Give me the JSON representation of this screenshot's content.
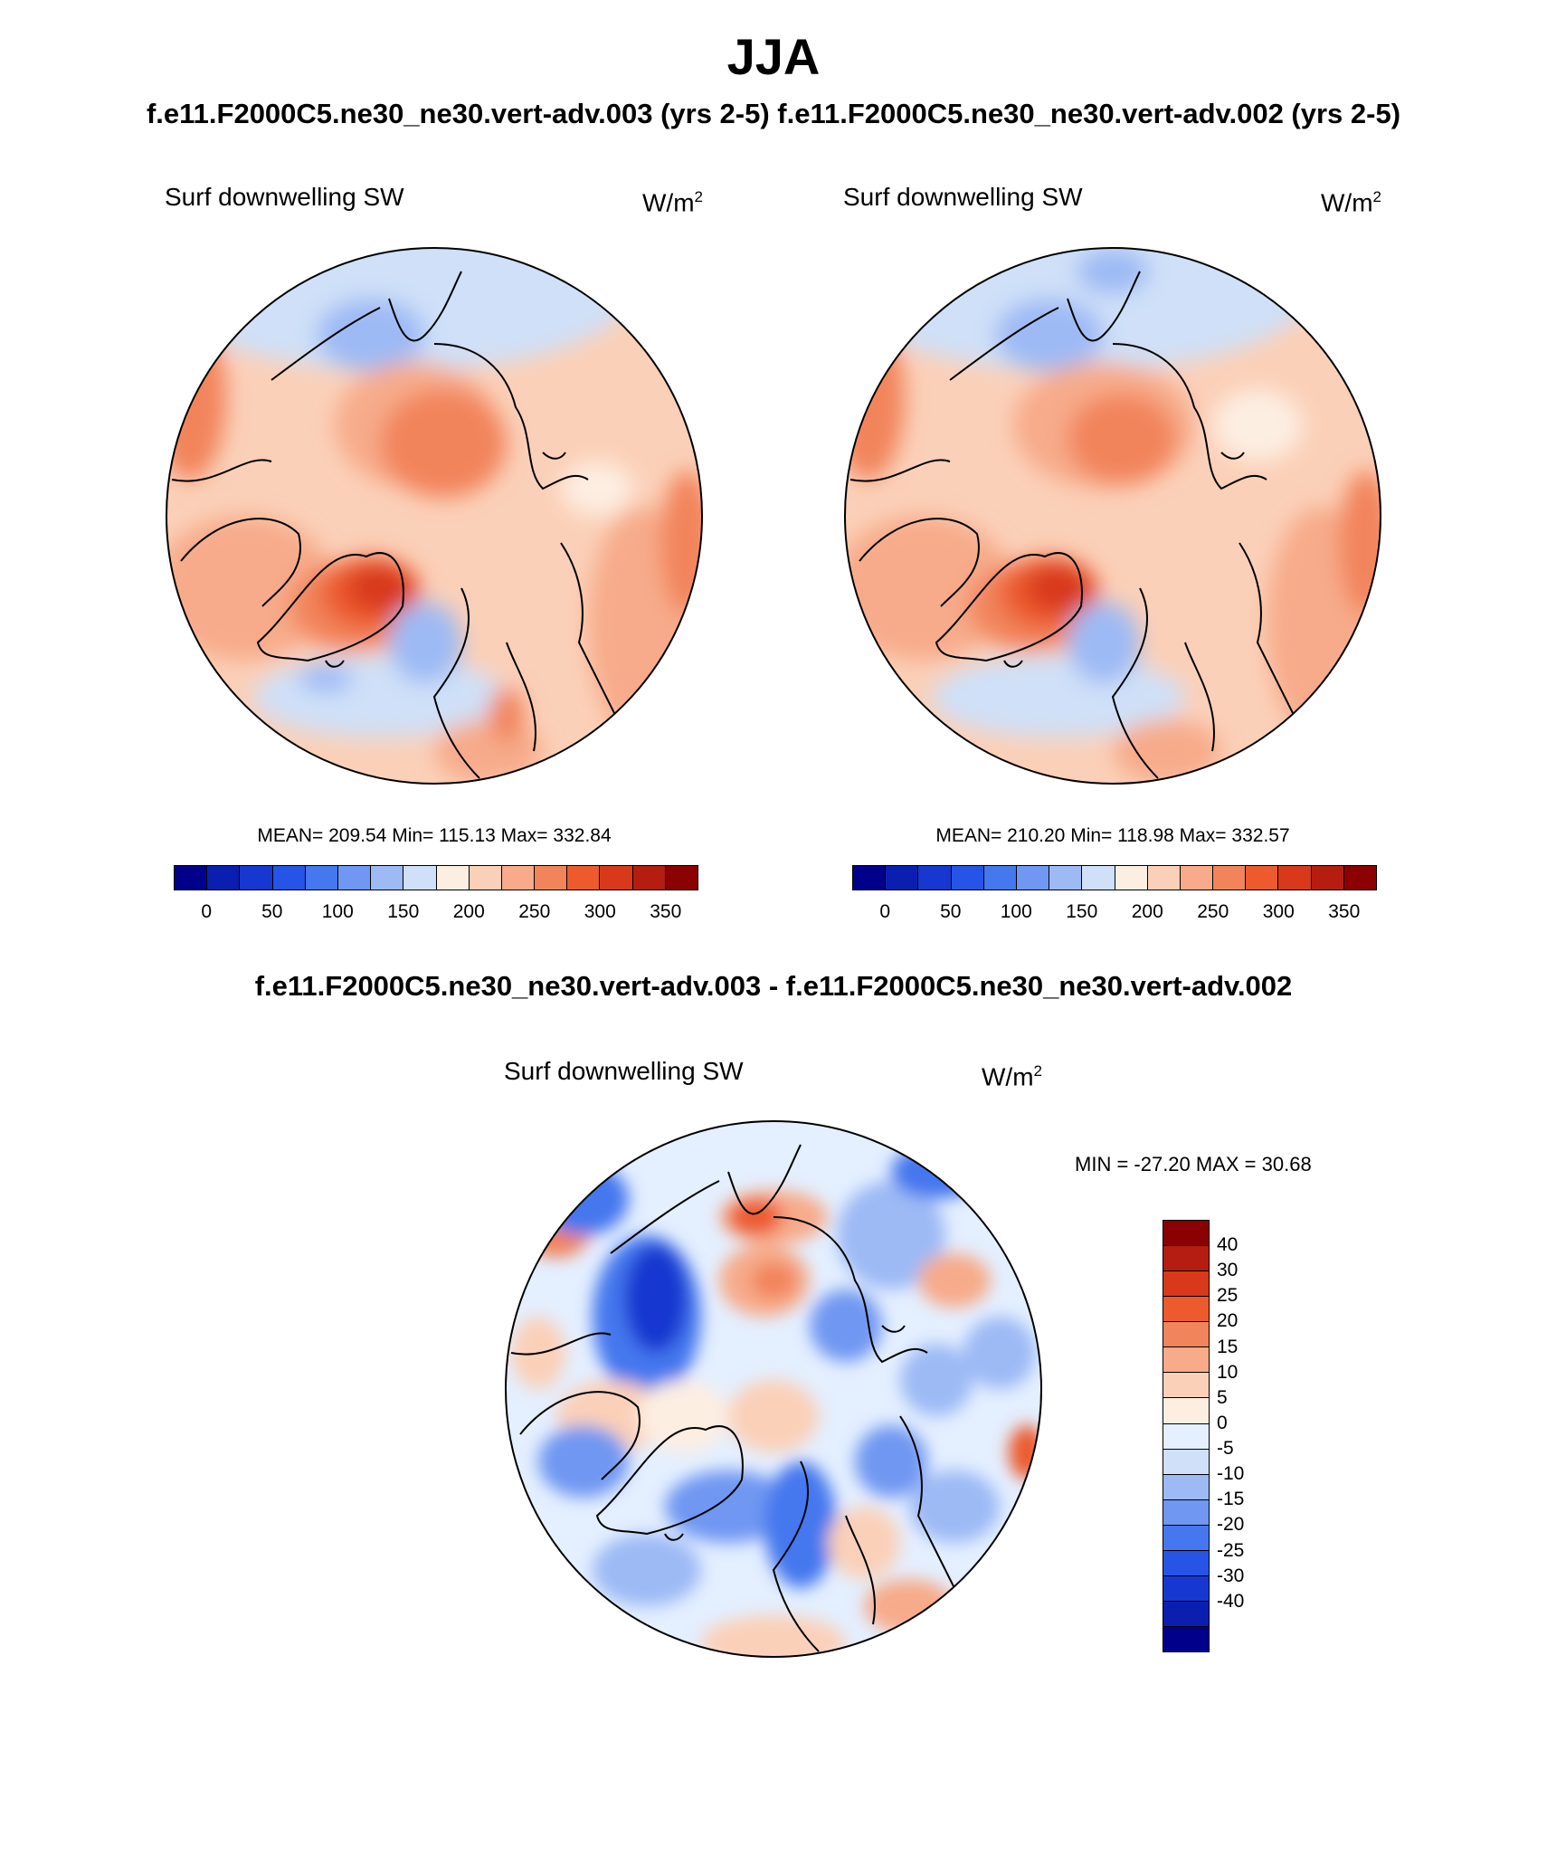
{
  "title": "JJA",
  "subtitle": "f.e11.F2000C5.ne30_ne30.vert-adv.003 (yrs 2-5)  f.e11.F2000C5.ne30_ne30.vert-adv.002 (yrs 2-5)",
  "diff_title": "f.e11.F2000C5.ne30_ne30.vert-adv.003 - f.e11.F2000C5.ne30_ne30.vert-adv.002",
  "panels": [
    {
      "variable": "Surf downwelling SW",
      "units_base": "W/m",
      "units_exp": "2",
      "stats": "MEAN= 209.54  Min= 115.13  Max= 332.84"
    },
    {
      "variable": "Surf downwelling SW",
      "units_base": "W/m",
      "units_exp": "2",
      "stats": "MEAN= 210.20  Min= 118.98  Max= 332.57"
    },
    {
      "variable": "Surf downwelling SW",
      "units_base": "W/m",
      "units_exp": "2",
      "stats": "MIN = -27.20 MAX =  30.68"
    }
  ],
  "colorbar_abs": {
    "colors": [
      "#00008b",
      "#0a1fb0",
      "#1638d0",
      "#2554e6",
      "#4577ee",
      "#7097f2",
      "#9dbaf5",
      "#cfe0f8",
      "#fdeee2",
      "#fbd0b8",
      "#f7ab8a",
      "#f2845c",
      "#ec5a2e",
      "#d8391a",
      "#b51d10",
      "#8b0000"
    ],
    "ticks": [
      "0",
      "50",
      "100",
      "150",
      "200",
      "250",
      "300",
      "350"
    ]
  },
  "colorbar_diff": {
    "colors": [
      "#8b0000",
      "#b51d10",
      "#d8391a",
      "#ec5a2e",
      "#f2845c",
      "#f7ab8a",
      "#fbd0b8",
      "#fdeee2",
      "#e4efff",
      "#cfe0f8",
      "#9dbaf5",
      "#7097f2",
      "#4577ee",
      "#2554e6",
      "#1638d0",
      "#0a1fb0",
      "#00008b"
    ],
    "ticks": [
      "40",
      "30",
      "25",
      "20",
      "15",
      "10",
      "5",
      "0",
      "-5",
      "-10",
      "-15",
      "-20",
      "-25",
      "-30",
      "-40"
    ]
  }
}
